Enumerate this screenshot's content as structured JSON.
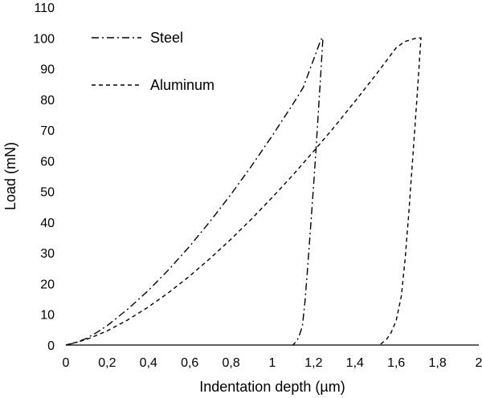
{
  "chart_data": {
    "type": "line",
    "xlabel": "Indentation depth (µm)",
    "ylabel": "Load (mN)",
    "xlim": [
      0,
      2
    ],
    "ylim": [
      0,
      110
    ],
    "x_ticks": [
      "0",
      "0,2",
      "0,4",
      "0,6",
      "0,8",
      "1",
      "1,2",
      "1,4",
      "1,6",
      "1,8",
      "2"
    ],
    "y_ticks": [
      "0",
      "10",
      "20",
      "30",
      "40",
      "50",
      "60",
      "70",
      "80",
      "90",
      "100",
      "110"
    ],
    "grid": false,
    "legend_position": "top-left",
    "series": [
      {
        "name": "Steel",
        "line_style": "dash-dot",
        "color": "#000000",
        "points": [
          [
            0.0,
            0
          ],
          [
            0.05,
            0.8
          ],
          [
            0.1,
            2.2
          ],
          [
            0.15,
            4.1
          ],
          [
            0.2,
            6.3
          ],
          [
            0.3,
            11.7
          ],
          [
            0.4,
            17.8
          ],
          [
            0.5,
            24.7
          ],
          [
            0.6,
            32.2
          ],
          [
            0.7,
            40.4
          ],
          [
            0.8,
            49.1
          ],
          [
            0.9,
            58.4
          ],
          [
            1.0,
            68.2
          ],
          [
            1.1,
            78.5
          ],
          [
            1.15,
            83.9
          ],
          [
            1.2,
            93.0
          ],
          [
            1.23,
            98.5
          ],
          [
            1.24,
            100
          ],
          [
            1.245,
            100
          ],
          [
            1.236,
            90
          ],
          [
            1.225,
            78
          ],
          [
            1.213,
            65
          ],
          [
            1.2,
            52
          ],
          [
            1.186,
            39
          ],
          [
            1.172,
            26
          ],
          [
            1.158,
            14
          ],
          [
            1.145,
            6
          ],
          [
            1.13,
            3
          ],
          [
            1.12,
            1.5
          ],
          [
            1.1,
            0
          ]
        ]
      },
      {
        "name": "Aluminum",
        "line_style": "dashed",
        "color": "#000000",
        "points": [
          [
            0.0,
            0
          ],
          [
            0.1,
            1.8
          ],
          [
            0.2,
            4.6
          ],
          [
            0.3,
            8.2
          ],
          [
            0.4,
            12.4
          ],
          [
            0.5,
            17.2
          ],
          [
            0.6,
            22.5
          ],
          [
            0.7,
            28.3
          ],
          [
            0.8,
            34.5
          ],
          [
            0.9,
            41.1
          ],
          [
            1.0,
            48.1
          ],
          [
            1.1,
            55.4
          ],
          [
            1.2,
            63.1
          ],
          [
            1.3,
            71.0
          ],
          [
            1.4,
            79.3
          ],
          [
            1.5,
            87.9
          ],
          [
            1.6,
            96.8
          ],
          [
            1.64,
            98.8
          ],
          [
            1.7,
            100
          ],
          [
            1.72,
            100
          ],
          [
            1.708,
            88
          ],
          [
            1.692,
            72
          ],
          [
            1.676,
            57
          ],
          [
            1.66,
            42
          ],
          [
            1.643,
            28
          ],
          [
            1.625,
            16
          ],
          [
            1.6,
            8
          ],
          [
            1.575,
            4
          ],
          [
            1.555,
            2
          ],
          [
            1.52,
            0
          ]
        ]
      }
    ]
  }
}
